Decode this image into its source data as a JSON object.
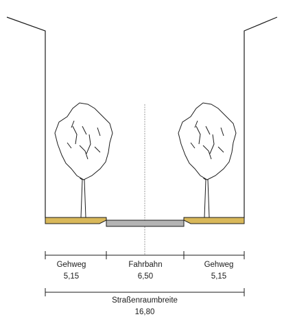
{
  "sections": [
    {
      "id": "gehweg-left",
      "name": "Gehweg",
      "width": "5,15"
    },
    {
      "id": "fahrbahn",
      "name": "Fahrbahn",
      "width": "6,50"
    },
    {
      "id": "gehweg-right",
      "name": "Gehweg",
      "width": "5,15"
    }
  ],
  "total": {
    "name": "Straßenraumbreite",
    "width": "16,80"
  },
  "colors": {
    "sidewalk": "#d9b85a",
    "roadway": "#b4b4b4",
    "line": "#1a1a1a",
    "centerline": "#9a9a9a"
  }
}
